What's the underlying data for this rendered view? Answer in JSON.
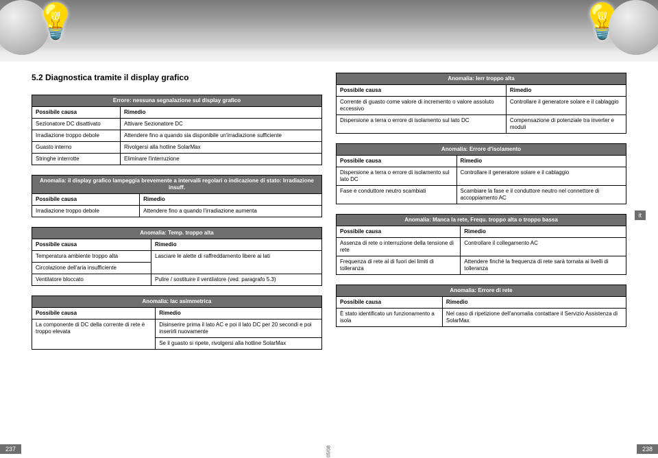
{
  "hero": {
    "bulb_glyph": "💡"
  },
  "section_title": "5.2 Diagnostica tramite il display grafico",
  "col_headers": {
    "cause": "Possibile causa",
    "remedy": "Rimedio"
  },
  "left": {
    "t1": {
      "title": "Errore: nessuna segnalazione sul display grafico",
      "rows": [
        [
          "Sezionatore DC disattivato",
          "Attivare Sezionatore DC"
        ],
        [
          "Irradiazione troppo debole",
          "Attendere fino a quando sia disponibile un'irradiazione sufficiente"
        ],
        [
          "Guasto interno",
          "Rivolgersi alla hotline SolarMax"
        ],
        [
          "Stringhe interrotte",
          "Eliminare l'interruzione"
        ]
      ]
    },
    "t2": {
      "title": "Anomalia: il display grafico lampeggia brevemente a intervalli regolari o indicazione di stato: Irradiazione insuff.",
      "rows": [
        [
          "Irradiazione troppo debole",
          "Attendere fino a quando l'irradiazione aumenta"
        ]
      ]
    },
    "t3": {
      "title": "Anomalia: Temp. troppo alta",
      "rows": [
        [
          "Temperatura ambiente troppo alta",
          "Lasciare le alette di raffreddamento libere ai lati"
        ],
        [
          "Circolazione dell'aria insufficiente",
          ""
        ],
        [
          "Ventilatore bloccato",
          "Pulire / sostituire il ventilatore (ved. paragrafo 5.3)"
        ]
      ]
    },
    "t4": {
      "title": "Anomalia: Iac asimmetrica",
      "rows": [
        [
          "La componente di DC della corrente di rete è troppo elevata",
          "Disinserire prima il lato AC e poi il lato DC per 20 secondi e poi inserirli nuovamente"
        ],
        [
          "",
          "Se il guasto si ripete, rivolgersi alla hotline SolarMax"
        ]
      ]
    }
  },
  "right": {
    "t1": {
      "title": "Anomalia: Ierr troppo alta",
      "rows": [
        [
          "Corrente di guasto come valore di incremento o valore assoluto eccessivo",
          "Controllare il generatore solare e il cablaggio"
        ],
        [
          "Dispersione a terra o errore di isolamento sul lato DC",
          "Compensazione di potenziale tra inverter e moduli"
        ]
      ]
    },
    "t2": {
      "title": "Anomalia: Errore d'isolamento",
      "rows": [
        [
          "Dispersione a terra o errore di isolamento sul lato DC",
          "Controllare il generatore solare e il cablaggio"
        ],
        [
          "Fase e conduttore neutro scambiati",
          "Scambiare la fase e il conduttore neutro nel connettore di accoppiamento AC"
        ]
      ]
    },
    "t3": {
      "title": "Anomalia: Manca la rete, Frequ. troppo alta o troppo bassa",
      "rows": [
        [
          "Assenza di rete o interruzione della tensione di rete",
          "Controllare il collegamento AC"
        ],
        [
          "Frequenza di rete al di fuori dei limiti di tolleranza",
          "Attendere finché la frequenza di rete sarà tornata ai livelli di tolleranza"
        ]
      ]
    },
    "t4": {
      "title": "Anomalia: Errore di rete",
      "rows": [
        [
          "È stato identificato un funzionamento a isola",
          "Nel caso di ripetizione dell'anomalia contattare il Servizio Assistenza di SolarMax"
        ]
      ]
    }
  },
  "footer": {
    "left_page": "237",
    "right_page": "238",
    "doc_code": "05/08",
    "lang": "it"
  }
}
